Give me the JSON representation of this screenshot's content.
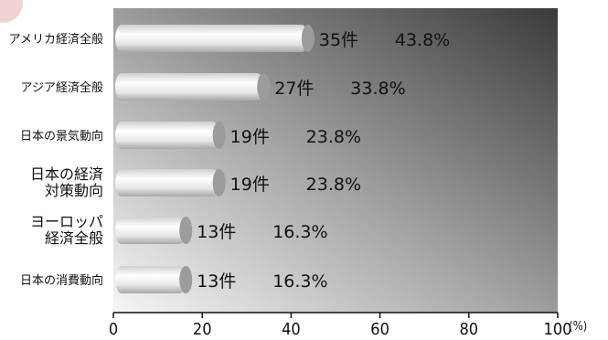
{
  "chart_data": {
    "type": "bar",
    "orientation": "horizontal",
    "categories": [
      [
        "アメリカ経済全般"
      ],
      [
        "アジア経済全般"
      ],
      [
        "日本の景気動向"
      ],
      [
        "日本の経済",
        "対策動向"
      ],
      [
        "ヨーロッパ",
        "経済全般"
      ],
      [
        "日本の消費動向"
      ]
    ],
    "counts": [
      "35件",
      "27件",
      "19件",
      "19件",
      "13件",
      "13件"
    ],
    "percent_labels": [
      "43.8%",
      "33.8%",
      "23.8%",
      "23.8%",
      "16.3%",
      "16.3%"
    ],
    "values": [
      43.8,
      33.8,
      23.8,
      23.8,
      16.3,
      16.3
    ],
    "xlim": [
      0,
      100
    ],
    "xticks": [
      "0",
      "20",
      "40",
      "60",
      "80",
      "100"
    ],
    "x_unit": "(%)",
    "grid": false,
    "colors": {
      "plot_gradient_dark": "#3a3a3a",
      "plot_gradient_mid": "#9a9a9a",
      "plot_gradient_light": "#f4f4f4",
      "bar_light": "#ffffff",
      "bar_shadow": "#bdbdbd",
      "bar_end": "#9a9a9a",
      "accent": "#e0b0b0"
    }
  }
}
